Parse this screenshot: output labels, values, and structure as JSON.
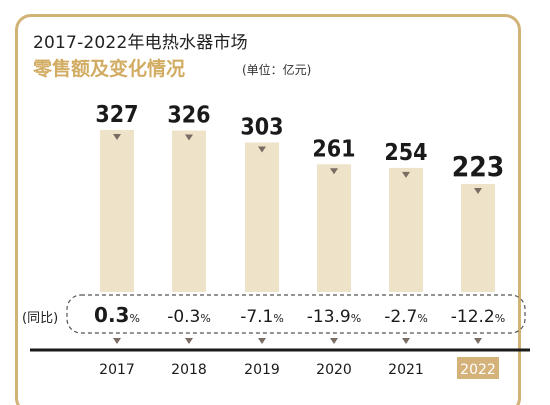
{
  "title": "2017-2022年电热水器市场",
  "subtitle": "零售额及变化情况",
  "unit": "(单位：亿元)",
  "yoy_label": "(同比)",
  "colors": {
    "bar": "#eee3c8",
    "accent": "#d2ac62",
    "marker": "#7a6c63",
    "axis": "#1a1a1a",
    "highlight": "#d4b27a"
  },
  "chart_data": {
    "type": "bar",
    "categories": [
      "2017",
      "2018",
      "2019",
      "2020",
      "2021",
      "2022"
    ],
    "values": [
      327,
      326,
      303,
      261,
      254,
      223
    ],
    "value_labels": [
      "327",
      "326",
      "303",
      "261",
      "254",
      "223"
    ],
    "yoy": [
      "0.3%",
      "-0.3%",
      "-7.1%",
      "-13.9%",
      "-2.7%",
      "-12.2%"
    ],
    "title": "2017-2022年电热水器市场",
    "subtitle": "零售额及变化情况",
    "ylabel": "",
    "highlight_category": "2022"
  }
}
